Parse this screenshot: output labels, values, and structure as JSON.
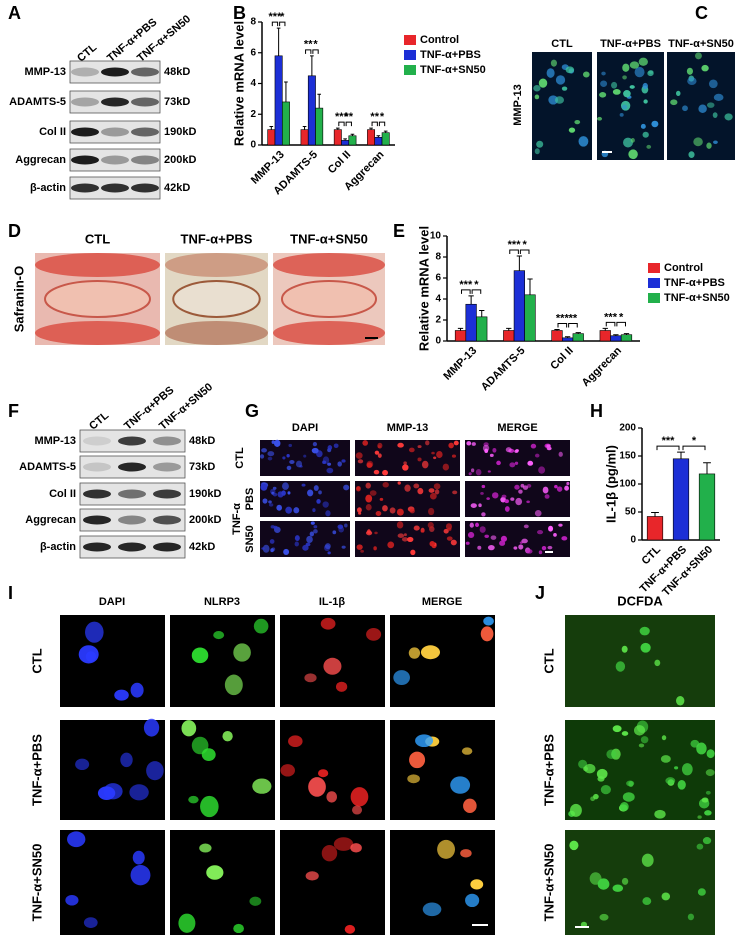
{
  "panels": {
    "A": {
      "letter": "A",
      "columns": [
        "CTL",
        "TNF-α+PBS",
        "TNF-α+SN50"
      ],
      "rows": [
        "MMP-13",
        "ADAMTS-5",
        "Col II",
        "Aggrecan",
        "β-actin"
      ],
      "sizes": [
        "48kD",
        "73kD",
        "190kD",
        "200kD",
        "42kD"
      ]
    },
    "C": {
      "letter": "C",
      "columns": [
        "CTL",
        "TNF-α+PBS",
        "TNF-α+SN50"
      ],
      "row": "MMP-13"
    },
    "D": {
      "letter": "D",
      "columns": [
        "CTL",
        "TNF-α+PBS",
        "TNF-α+SN50"
      ],
      "row": "Safranin-O"
    },
    "F": {
      "letter": "F",
      "columns": [
        "CTL",
        "TNF-α+PBS",
        "TNF-α+SN50"
      ],
      "rows": [
        "MMP-13",
        "ADAMTS-5",
        "Col II",
        "Aggrecan",
        "β-actin"
      ],
      "sizes": [
        "48kD",
        "73kD",
        "190kD",
        "200kD",
        "42kD"
      ]
    },
    "G": {
      "letter": "G",
      "columns": [
        "DAPI",
        "MMP-13",
        "MERGE"
      ],
      "rows": [
        "CTL",
        "PBS",
        "SN50"
      ],
      "group": "TNF-α"
    },
    "I": {
      "letter": "I",
      "columns": [
        "DAPI",
        "NLRP3",
        "IL-1β",
        "MERGE"
      ],
      "rows": [
        "CTL",
        "TNF-α+PBS",
        "TNF-α+SN50"
      ]
    },
    "J": {
      "letter": "J",
      "columns": [
        "DCFDA"
      ],
      "rows": [
        "CTL",
        "TNF-α+PBS",
        "TNF-α+SN50"
      ]
    }
  },
  "chart_data": [
    {
      "type": "bar",
      "panel_label": "B",
      "y_label": "Relative mRNA level",
      "categories": [
        "MMP-13",
        "ADAMTS-5",
        "Col II",
        "Aggrecan"
      ],
      "series": [
        {
          "name": "Control",
          "color": "#e8262a",
          "values": [
            1,
            1,
            1,
            1
          ],
          "errors": [
            0.2,
            0.2,
            0.1,
            0.1
          ]
        },
        {
          "name": "TNF-α+PBS",
          "color": "#1c2fd6",
          "values": [
            5.8,
            4.5,
            0.3,
            0.5
          ],
          "errors": [
            1.8,
            1.3,
            0.1,
            0.1
          ]
        },
        {
          "name": "TNF-α+SN50",
          "color": "#22b04b",
          "values": [
            2.8,
            2.4,
            0.6,
            0.8
          ],
          "errors": [
            1.3,
            0.9,
            0.1,
            0.1
          ]
        }
      ],
      "significance": [
        [
          "***",
          "*"
        ],
        [
          "**",
          "*"
        ],
        [
          "***",
          "**"
        ],
        [
          "**",
          "*"
        ]
      ],
      "ylim": [
        0,
        8
      ],
      "yticks": [
        0,
        2,
        4,
        6,
        8
      ]
    },
    {
      "type": "bar",
      "panel_label": "E",
      "y_label": "Relative mRNA level",
      "categories": [
        "MMP-13",
        "ADAMTS-5",
        "Col II",
        "Aggrecan"
      ],
      "series": [
        {
          "name": "Control",
          "color": "#e8262a",
          "values": [
            1,
            1,
            1,
            1
          ],
          "errors": [
            0.2,
            0.2,
            0.1,
            0.2
          ]
        },
        {
          "name": "TNF-α+PBS",
          "color": "#1c2fd6",
          "values": [
            3.5,
            6.7,
            0.3,
            0.5
          ],
          "errors": [
            0.8,
            1.4,
            0.1,
            0.1
          ]
        },
        {
          "name": "TNF-α+SN50",
          "color": "#22b04b",
          "values": [
            2.3,
            4.4,
            0.7,
            0.6
          ],
          "errors": [
            0.6,
            1.5,
            0.1,
            0.1
          ]
        }
      ],
      "significance": [
        [
          "***",
          "*"
        ],
        [
          "***",
          "*"
        ],
        [
          "***",
          "**"
        ],
        [
          "***",
          "*"
        ]
      ],
      "ylim": [
        0,
        10
      ],
      "yticks": [
        0,
        2,
        4,
        6,
        8,
        10
      ]
    },
    {
      "type": "bar",
      "panel_label": "H",
      "y_label": "IL-1β (pg/ml)",
      "categories": [
        "CTL",
        "TNF-α+PBS",
        "TNF-α+SN50"
      ],
      "values": [
        42,
        145,
        118
      ],
      "errors": [
        7,
        12,
        20
      ],
      "colors": [
        "#e8262a",
        "#1c2fd6",
        "#22b04b"
      ],
      "significance": [
        "***",
        "*"
      ],
      "ylim": [
        0,
        200
      ],
      "yticks": [
        0,
        50,
        100,
        150,
        200
      ]
    }
  ]
}
